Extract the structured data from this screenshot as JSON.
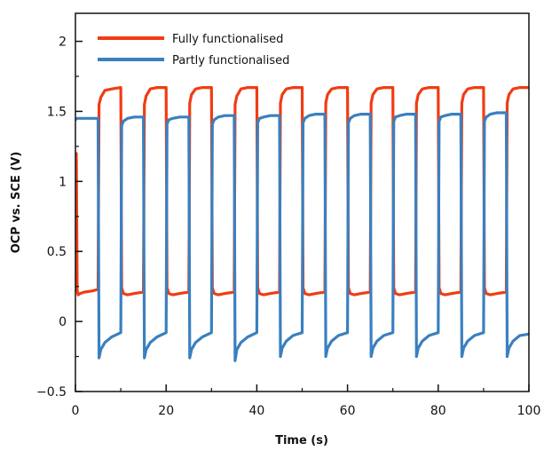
{
  "chart_data": {
    "type": "line",
    "xlabel": "Time (s)",
    "ylabel": "OCP vs. SCE (V)",
    "xlim": [
      0,
      100
    ],
    "ylim": [
      -0.5,
      2.2
    ],
    "x_ticks": [
      0,
      20,
      40,
      60,
      80,
      100
    ],
    "x_tick_labels": [
      "0",
      "20",
      "40",
      "60",
      "80",
      "100"
    ],
    "y_ticks": [
      -0.5,
      0,
      0.5,
      1,
      1.5,
      2
    ],
    "y_tick_labels": [
      "−0.5",
      "0",
      "0.5",
      "1",
      "1.5",
      "2"
    ],
    "grid": false,
    "legend_position": "top-left",
    "series": [
      {
        "name": "Fully functionalised",
        "color": "#f03c14",
        "x": [
          0,
          0.2,
          0.4,
          0.6,
          1,
          2,
          4,
          5,
          5.2,
          5.6,
          6.5,
          8,
          10,
          10.2,
          10.6,
          11.5,
          13,
          15,
          15.2,
          15.6,
          16.5,
          18,
          20,
          20.2,
          20.6,
          21.5,
          23,
          25,
          25.2,
          25.6,
          26.5,
          28,
          30,
          30.2,
          30.6,
          31.5,
          33,
          35,
          35.2,
          35.6,
          36.5,
          38,
          40,
          40.2,
          40.6,
          41.5,
          43,
          45,
          45.2,
          45.6,
          46.5,
          48,
          50,
          50.2,
          50.6,
          51.5,
          53,
          55,
          55.2,
          55.6,
          56.5,
          58,
          60,
          60.2,
          60.6,
          61.5,
          63,
          65,
          65.2,
          65.6,
          66.5,
          68,
          70,
          70.2,
          70.6,
          71.5,
          73,
          75,
          75.2,
          75.6,
          76.5,
          78,
          80,
          80.2,
          80.6,
          81.5,
          83,
          85,
          85.2,
          85.6,
          86.5,
          88,
          90,
          90.2,
          90.6,
          91.5,
          93,
          95,
          95.2,
          95.6,
          96.5,
          98,
          100
        ],
        "y": [
          0.23,
          1.2,
          0.22,
          0.19,
          0.2,
          0.21,
          0.22,
          0.23,
          1.55,
          1.6,
          1.65,
          1.66,
          1.67,
          0.24,
          0.2,
          0.19,
          0.2,
          0.21,
          1.55,
          1.61,
          1.66,
          1.67,
          1.67,
          0.24,
          0.2,
          0.19,
          0.2,
          0.21,
          1.56,
          1.62,
          1.66,
          1.67,
          1.67,
          0.24,
          0.2,
          0.19,
          0.2,
          0.21,
          1.55,
          1.61,
          1.66,
          1.67,
          1.67,
          0.24,
          0.2,
          0.19,
          0.2,
          0.21,
          1.56,
          1.62,
          1.66,
          1.67,
          1.67,
          0.24,
          0.2,
          0.19,
          0.2,
          0.21,
          1.56,
          1.62,
          1.66,
          1.67,
          1.67,
          0.24,
          0.2,
          0.19,
          0.2,
          0.21,
          1.56,
          1.62,
          1.66,
          1.67,
          1.67,
          0.24,
          0.2,
          0.19,
          0.2,
          0.21,
          1.56,
          1.62,
          1.66,
          1.67,
          1.67,
          0.24,
          0.2,
          0.19,
          0.2,
          0.21,
          1.56,
          1.62,
          1.66,
          1.67,
          1.67,
          0.24,
          0.2,
          0.19,
          0.2,
          0.21,
          1.56,
          1.62,
          1.66,
          1.67,
          1.67
        ]
      },
      {
        "name": "Partly functionalised",
        "color": "#3a80bf",
        "x": [
          0,
          0.3,
          1,
          3,
          4.8,
          5,
          5.2,
          5.6,
          6.5,
          8,
          10,
          10.2,
          10.6,
          11.5,
          13,
          15,
          15.2,
          15.6,
          16.5,
          18,
          20,
          20.2,
          20.6,
          21.5,
          23,
          25,
          25.2,
          25.6,
          26.5,
          28,
          30,
          30.2,
          30.6,
          31.5,
          33,
          35,
          35.2,
          35.6,
          36.5,
          38,
          40,
          40.2,
          40.6,
          41.5,
          43,
          45,
          45.2,
          45.6,
          46.5,
          48,
          50,
          50.2,
          50.6,
          51.5,
          53,
          55,
          55.2,
          55.6,
          56.5,
          58,
          60,
          60.2,
          60.6,
          61.5,
          63,
          65,
          65.2,
          65.6,
          66.5,
          68,
          70,
          70.2,
          70.6,
          71.5,
          73,
          75,
          75.2,
          75.6,
          76.5,
          78,
          80,
          80.2,
          80.6,
          81.5,
          83,
          85,
          85.2,
          85.6,
          86.5,
          88,
          90,
          90.2,
          90.6,
          91.5,
          93,
          95,
          95.2,
          95.6,
          96.5,
          98,
          100
        ],
        "y": [
          1.44,
          1.45,
          1.45,
          1.45,
          1.45,
          1.45,
          -0.26,
          -0.2,
          -0.15,
          -0.11,
          -0.08,
          1.4,
          1.43,
          1.45,
          1.46,
          1.46,
          -0.26,
          -0.2,
          -0.15,
          -0.11,
          -0.08,
          1.41,
          1.44,
          1.45,
          1.46,
          1.46,
          -0.26,
          -0.2,
          -0.15,
          -0.11,
          -0.08,
          1.41,
          1.44,
          1.46,
          1.47,
          1.47,
          -0.28,
          -0.2,
          -0.15,
          -0.11,
          -0.08,
          1.42,
          1.45,
          1.46,
          1.47,
          1.47,
          -0.25,
          -0.19,
          -0.14,
          -0.1,
          -0.08,
          1.42,
          1.45,
          1.47,
          1.48,
          1.48,
          -0.25,
          -0.19,
          -0.14,
          -0.1,
          -0.08,
          1.42,
          1.45,
          1.47,
          1.48,
          1.48,
          -0.25,
          -0.19,
          -0.14,
          -0.1,
          -0.08,
          1.43,
          1.46,
          1.47,
          1.48,
          1.48,
          -0.25,
          -0.19,
          -0.14,
          -0.1,
          -0.08,
          1.43,
          1.46,
          1.47,
          1.48,
          1.48,
          -0.25,
          -0.19,
          -0.14,
          -0.1,
          -0.08,
          1.43,
          1.46,
          1.48,
          1.49,
          1.49,
          -0.25,
          -0.19,
          -0.14,
          -0.1,
          -0.09
        ]
      }
    ]
  }
}
